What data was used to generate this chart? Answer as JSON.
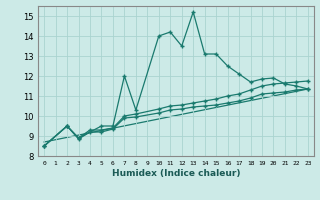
{
  "xlabel": "Humidex (Indice chaleur)",
  "bg_color": "#cceae7",
  "grid_color": "#aad4d0",
  "line_color": "#1a7a6e",
  "xlim": [
    -0.5,
    23.5
  ],
  "ylim": [
    8,
    15.5
  ],
  "xticks": [
    0,
    1,
    2,
    3,
    4,
    5,
    6,
    7,
    8,
    9,
    10,
    11,
    12,
    13,
    14,
    15,
    16,
    17,
    18,
    19,
    20,
    21,
    22,
    23
  ],
  "yticks": [
    8,
    9,
    10,
    11,
    12,
    13,
    14,
    15
  ],
  "series1_x": [
    0,
    2,
    3,
    5,
    6,
    7,
    8,
    10,
    11,
    12,
    13,
    14,
    15,
    16,
    17,
    18,
    19,
    20,
    21,
    22,
    23
  ],
  "series1_y": [
    8.5,
    9.5,
    8.9,
    9.5,
    9.5,
    12.0,
    10.3,
    14.0,
    14.2,
    13.5,
    15.2,
    13.1,
    13.1,
    12.5,
    12.1,
    11.7,
    11.85,
    11.9,
    11.6,
    11.5,
    11.35
  ],
  "series2_x": [
    0,
    2,
    3,
    4,
    5,
    6,
    7,
    8,
    10,
    11,
    12,
    13,
    14,
    15,
    16,
    17,
    18,
    19,
    20,
    21,
    22,
    23
  ],
  "series2_y": [
    8.5,
    9.5,
    8.9,
    9.3,
    9.3,
    9.4,
    10.0,
    10.1,
    10.35,
    10.5,
    10.55,
    10.65,
    10.75,
    10.85,
    11.0,
    11.1,
    11.3,
    11.5,
    11.6,
    11.65,
    11.7,
    11.75
  ],
  "series3_x": [
    0,
    2,
    3,
    4,
    5,
    6,
    7,
    8,
    10,
    11,
    12,
    13,
    14,
    15,
    16,
    17,
    18,
    19,
    20,
    21,
    22,
    23
  ],
  "series3_y": [
    8.5,
    9.5,
    8.85,
    9.2,
    9.2,
    9.35,
    9.9,
    9.95,
    10.15,
    10.3,
    10.35,
    10.45,
    10.5,
    10.55,
    10.65,
    10.75,
    10.9,
    11.1,
    11.15,
    11.2,
    11.3,
    11.35
  ],
  "series4_x": [
    0,
    23
  ],
  "series4_y": [
    8.7,
    11.35
  ],
  "markersize": 2.5,
  "linewidth": 0.9
}
